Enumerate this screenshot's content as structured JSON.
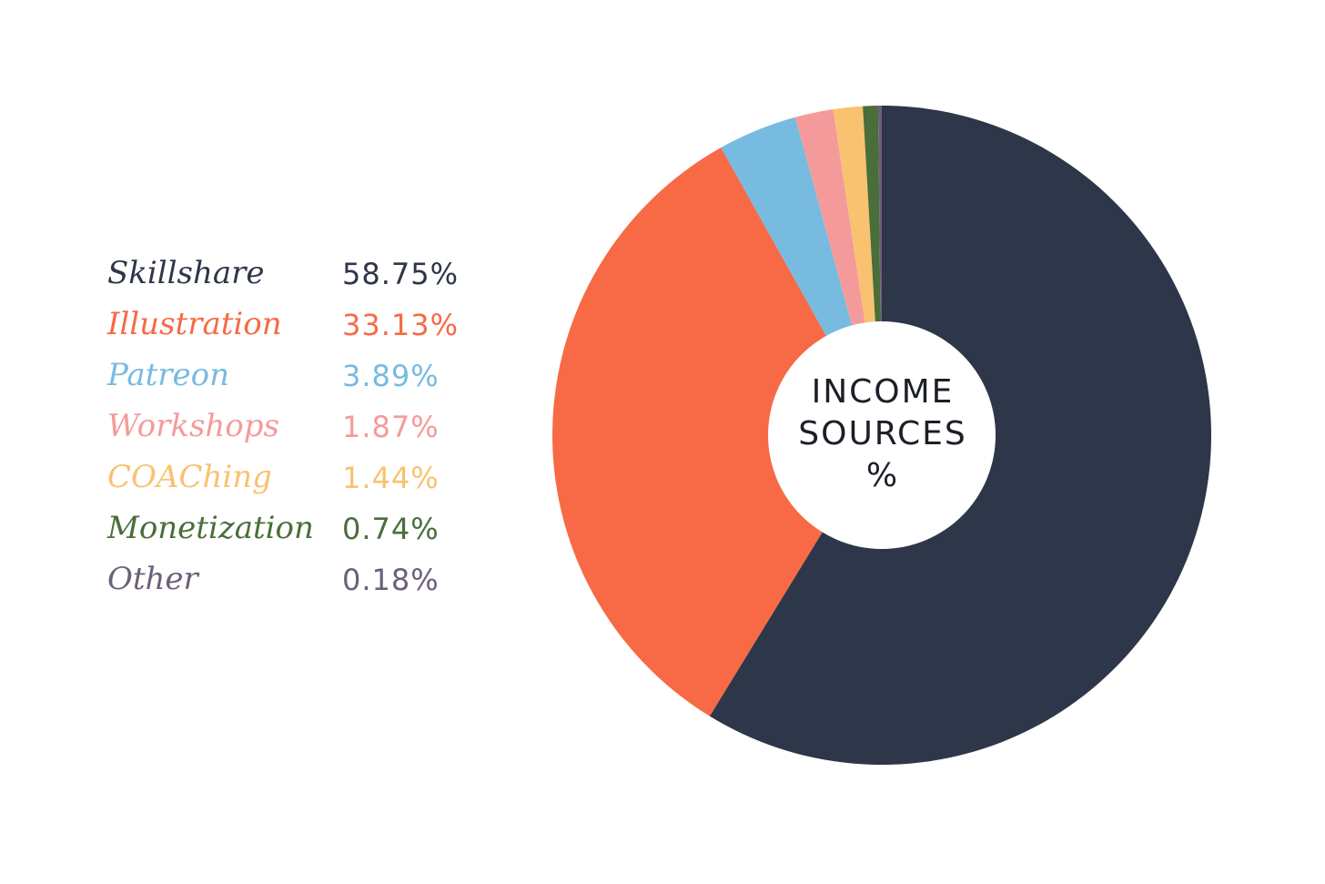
{
  "chart_data": {
    "type": "pie",
    "donut": true,
    "center_label": [
      "INCOME",
      "SOURCES",
      "%"
    ],
    "start_angle_deg": 0,
    "direction": "clockwise",
    "legend_placement": "left",
    "slices": [
      {
        "label": "Skillshare",
        "value": 58.75,
        "display": "58.75%",
        "color": "#2e3649"
      },
      {
        "label": "Illustration",
        "value": 33.13,
        "display": "33.13%",
        "color": "#f76a45"
      },
      {
        "label": "Patreon",
        "value": 3.89,
        "display": "3.89%",
        "color": "#77bbe0"
      },
      {
        "label": "Workshops",
        "value": 1.87,
        "display": "1.87%",
        "color": "#f59a9a"
      },
      {
        "label": "COAChing",
        "value": 1.44,
        "display": "1.44%",
        "color": "#f9c270"
      },
      {
        "label": "Monetization",
        "value": 0.74,
        "display": "0.74%",
        "color": "#4a6e3a"
      },
      {
        "label": "Other",
        "value": 0.18,
        "display": "0.18%",
        "color": "#6c5f7a"
      }
    ]
  }
}
